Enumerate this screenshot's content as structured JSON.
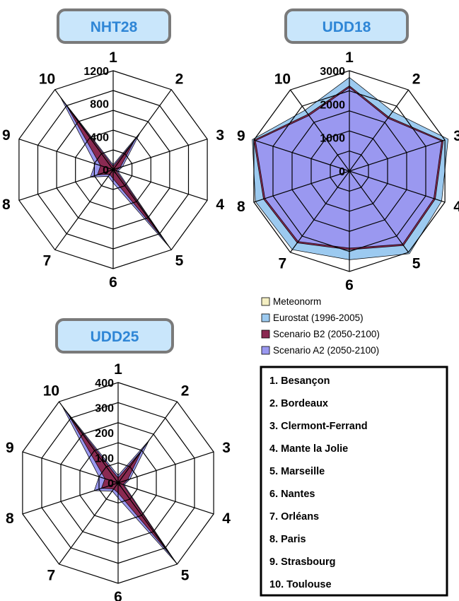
{
  "chart_data": [
    {
      "type": "radar",
      "title": "NHT28",
      "categories": [
        "1",
        "2",
        "3",
        "4",
        "5",
        "6",
        "7",
        "8",
        "9",
        "10"
      ],
      "rlim": [
        0,
        1200
      ],
      "ticks": [
        0,
        400,
        800,
        1200
      ],
      "tick_labels": [
        "0",
        "400",
        "800",
        "1200"
      ],
      "series": [
        {
          "name": "Scenario A2 (2050-2100)",
          "color": "#9a98f0",
          "values": [
            60,
            560,
            120,
            60,
            1170,
            160,
            100,
            290,
            230,
            1090
          ]
        },
        {
          "name": "Scenario B2 (2050-2100)",
          "color": "#8a2a52",
          "values": [
            40,
            440,
            90,
            40,
            1080,
            110,
            70,
            200,
            160,
            960
          ]
        },
        {
          "name": "Eurostat (1996-2005)",
          "color": "#9ccaf0",
          "values": [
            0,
            0,
            0,
            0,
            0,
            0,
            0,
            0,
            0,
            0
          ]
        },
        {
          "name": "Meteonorm",
          "color": "#f4efc2",
          "values": [
            8,
            40,
            15,
            12,
            70,
            20,
            15,
            30,
            25,
            45
          ]
        }
      ]
    },
    {
      "type": "radar",
      "title": "UDD18",
      "categories": [
        "1",
        "2",
        "3",
        "4",
        "5",
        "6",
        "7",
        "8",
        "9",
        "10"
      ],
      "rlim": [
        0,
        3000
      ],
      "ticks": [
        0,
        1000,
        2000,
        3000
      ],
      "tick_labels": [
        "0",
        "1000",
        "2000",
        "3000"
      ],
      "series": [
        {
          "name": "Eurostat (1996-2005)",
          "color": "#9ccaf0",
          "values": [
            2800,
            2200,
            3100,
            2900,
            3050,
            2650,
            2900,
            2950,
            3050,
            2250
          ]
        },
        {
          "name": "Scenario B2 (2050-2100)",
          "color": "#8a2a52",
          "values": [
            2550,
            2000,
            2950,
            2700,
            2750,
            2350,
            2650,
            2700,
            3000,
            2100
          ]
        },
        {
          "name": "Scenario A2 (2050-2100)",
          "color": "#9a98f0",
          "values": [
            2500,
            1950,
            2900,
            2650,
            2700,
            2300,
            2600,
            2650,
            2950,
            2050
          ]
        },
        {
          "name": "Meteonorm",
          "color": "#f4efc2",
          "values": [
            0,
            0,
            0,
            0,
            0,
            0,
            0,
            0,
            0,
            0
          ]
        }
      ]
    },
    {
      "type": "radar",
      "title": "UDD25",
      "categories": [
        "1",
        "2",
        "3",
        "4",
        "5",
        "6",
        "7",
        "8",
        "9",
        "10"
      ],
      "rlim": [
        0,
        400
      ],
      "ticks": [
        0,
        100,
        200,
        300,
        400
      ],
      "tick_labels": [
        "0",
        "100",
        "200",
        "300",
        "400"
      ],
      "series": [
        {
          "name": "Scenario A2 (2050-2100)",
          "color": "#9a98f0",
          "values": [
            30,
            210,
            50,
            25,
            395,
            60,
            40,
            100,
            80,
            380
          ]
        },
        {
          "name": "Scenario B2 (2050-2100)",
          "color": "#8a2a52",
          "values": [
            20,
            160,
            40,
            20,
            360,
            40,
            30,
            70,
            55,
            340
          ]
        },
        {
          "name": "Eurostat (1996-2005)",
          "color": "#9ccaf0",
          "values": [
            0,
            0,
            0,
            0,
            0,
            0,
            0,
            0,
            0,
            0
          ]
        },
        {
          "name": "Meteonorm",
          "color": "#f4efc2",
          "values": [
            3,
            12,
            5,
            4,
            22,
            6,
            5,
            8,
            7,
            14
          ]
        }
      ]
    }
  ],
  "legend": [
    {
      "label": "Meteonorm",
      "color": "#f4efc2"
    },
    {
      "label": "Eurostat (1996-2005)",
      "color": "#9ccaf0"
    },
    {
      "label": "Scenario B2 (2050-2100)",
      "color": "#8a2a52"
    },
    {
      "label": "Scenario A2 (2050-2100)",
      "color": "#9a98f0"
    }
  ],
  "cities": [
    "1. Besançon",
    "2. Bordeaux",
    "3. Clermont-Ferrand",
    "4. Mante la Jolie",
    "5. Marseille",
    "6. Nantes",
    "7. Orléans",
    "8. Paris",
    "9. Strasbourg",
    "10. Toulouse"
  ]
}
